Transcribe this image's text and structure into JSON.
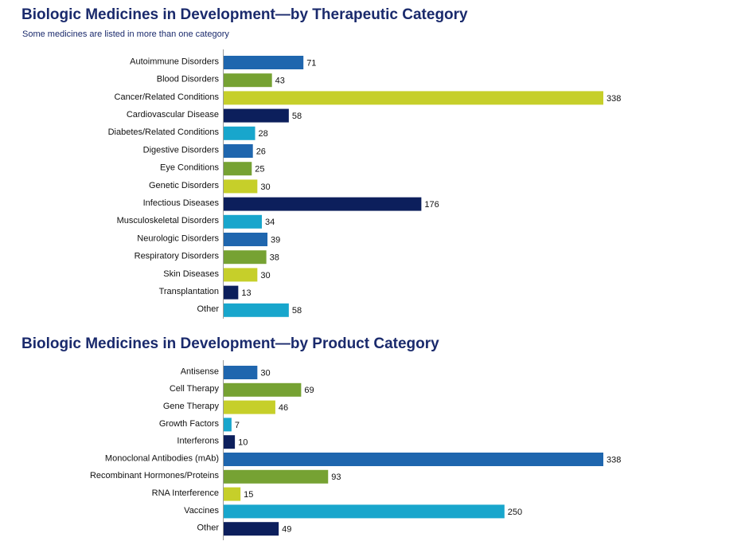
{
  "colors": {
    "title": "#1a2a6c",
    "palette": [
      "#1f66ae",
      "#76a233",
      "#c6cf2a",
      "#0c1f5c",
      "#18a6cc"
    ]
  },
  "chart_data": [
    {
      "type": "bar",
      "orientation": "horizontal",
      "title": "Biologic Medicines in Development—by Therapeutic Category",
      "subtitle": "Some medicines are listed in more than one category",
      "categories": [
        "Autoimmune Disorders",
        "Blood Disorders",
        "Cancer/Related Conditions",
        "Cardiovascular Disease",
        "Diabetes/Related Conditions",
        "Digestive Disorders",
        "Eye Conditions",
        "Genetic Disorders",
        "Infectious Diseases",
        "Musculoskeletal Disorders",
        "Neurologic Disorders",
        "Respiratory Disorders",
        "Skin Diseases",
        "Transplantation",
        "Other"
      ],
      "values": [
        71,
        43,
        338,
        58,
        28,
        26,
        25,
        30,
        176,
        34,
        39,
        38,
        30,
        13,
        58
      ],
      "bar_colors": [
        "#1f66ae",
        "#76a233",
        "#c6cf2a",
        "#0c1f5c",
        "#18a6cc",
        "#1f66ae",
        "#76a233",
        "#c6cf2a",
        "#0c1f5c",
        "#18a6cc",
        "#1f66ae",
        "#76a233",
        "#c6cf2a",
        "#0c1f5c",
        "#18a6cc"
      ],
      "data_labels": true,
      "xlim": [
        0,
        338
      ],
      "grid": false,
      "legend": "none"
    },
    {
      "type": "bar",
      "orientation": "horizontal",
      "title": "Biologic Medicines in Development—by Product Category",
      "categories": [
        "Antisense",
        "Cell Therapy",
        "Gene Therapy",
        "Growth Factors",
        "Interferons",
        "Monoclonal Antibodies (mAb)",
        "Recombinant Hormones/Proteins",
        "RNA  Interference",
        "Vaccines",
        "Other"
      ],
      "values": [
        30,
        69,
        46,
        7,
        10,
        338,
        93,
        15,
        250,
        49
      ],
      "bar_colors": [
        "#1f66ae",
        "#76a233",
        "#c6cf2a",
        "#18a6cc",
        "#0c1f5c",
        "#1f66ae",
        "#76a233",
        "#c6cf2a",
        "#18a6cc",
        "#0c1f5c"
      ],
      "data_labels": true,
      "xlim": [
        0,
        338
      ],
      "grid": false,
      "legend": "none"
    }
  ]
}
